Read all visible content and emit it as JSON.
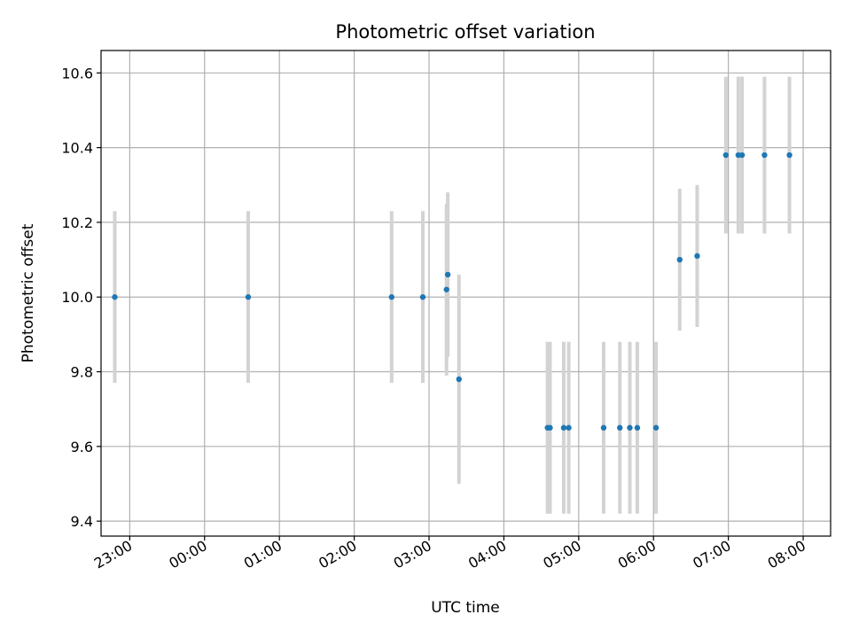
{
  "chart_data": {
    "type": "scatter",
    "title": "Photometric offset variation",
    "xlabel": "UTC time",
    "ylabel": "Photometric offset",
    "x_axis_kind": "time",
    "xlim": [
      "22:37",
      "08:22"
    ],
    "ylim": [
      9.36,
      10.66
    ],
    "y_ticks": [
      "9.4",
      "9.6",
      "9.8",
      "10.0",
      "10.2",
      "10.4",
      "10.6"
    ],
    "x_ticks": [
      "23:00",
      "00:00",
      "01:00",
      "02:00",
      "03:00",
      "04:00",
      "05:00",
      "06:00",
      "07:00",
      "08:00"
    ],
    "grid": true,
    "legend": "none",
    "colors": {
      "point": "#1f77b4",
      "errorbar": "#d3d3d3",
      "grid": "#b0b0b0"
    },
    "points": [
      {
        "x": "22:48",
        "y": 10.0,
        "err": 0.23
      },
      {
        "x": "00:35",
        "y": 10.0,
        "err": 0.23
      },
      {
        "x": "02:30",
        "y": 10.0,
        "err": 0.23
      },
      {
        "x": "02:55",
        "y": 10.0,
        "err": 0.23
      },
      {
        "x": "03:14",
        "y": 10.02,
        "err": 0.23
      },
      {
        "x": "03:15",
        "y": 10.06,
        "err": 0.22
      },
      {
        "x": "03:24",
        "y": 9.78,
        "err": 0.28
      },
      {
        "x": "04:35",
        "y": 9.65,
        "err": 0.23
      },
      {
        "x": "04:37",
        "y": 9.65,
        "err": 0.23
      },
      {
        "x": "04:48",
        "y": 9.65,
        "err": 0.23
      },
      {
        "x": "04:52",
        "y": 9.65,
        "err": 0.23
      },
      {
        "x": "05:20",
        "y": 9.65,
        "err": 0.23
      },
      {
        "x": "05:33",
        "y": 9.65,
        "err": 0.23
      },
      {
        "x": "05:41",
        "y": 9.65,
        "err": 0.23
      },
      {
        "x": "05:47",
        "y": 9.65,
        "err": 0.23
      },
      {
        "x": "06:02",
        "y": 9.65,
        "err": 0.23
      },
      {
        "x": "06:21",
        "y": 10.1,
        "err": 0.19
      },
      {
        "x": "06:35",
        "y": 10.11,
        "err": 0.19
      },
      {
        "x": "06:58",
        "y": 10.38,
        "err": 0.21
      },
      {
        "x": "07:08",
        "y": 10.38,
        "err": 0.21
      },
      {
        "x": "07:11",
        "y": 10.38,
        "err": 0.21
      },
      {
        "x": "07:29",
        "y": 10.38,
        "err": 0.21
      },
      {
        "x": "07:49",
        "y": 10.38,
        "err": 0.21
      }
    ]
  }
}
